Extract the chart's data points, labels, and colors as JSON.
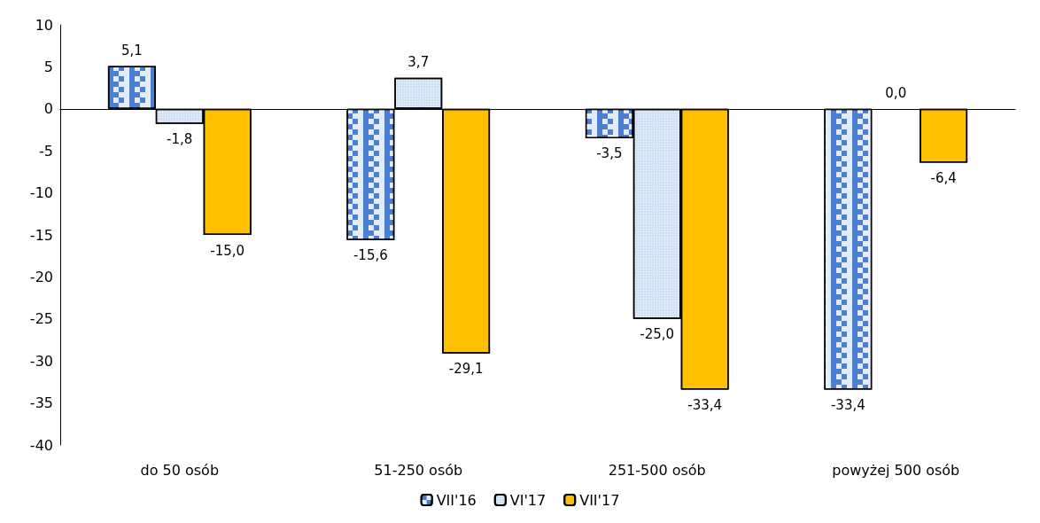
{
  "chart_data": {
    "type": "bar",
    "categories": [
      "do 50 osób",
      "51-250 osób",
      "251-500 osób",
      "powyżej 500 osób"
    ],
    "series": [
      {
        "name": "VII'16",
        "color": "#4a7fd4",
        "values": [
          5.1,
          -15.6,
          -3.5,
          -33.4
        ],
        "value_labels": [
          "5,1",
          "-15,6",
          "-3,5",
          "-33,4"
        ]
      },
      {
        "name": "VI'17",
        "color": "#cfe0f5",
        "values": [
          -1.8,
          3.7,
          -25.0,
          0.0
        ],
        "value_labels": [
          "-1,8",
          "3,7",
          "-25,0",
          "0,0"
        ]
      },
      {
        "name": "VII'17",
        "color": "#ffc000",
        "values": [
          -15.0,
          -29.1,
          -33.4,
          -6.4
        ],
        "value_labels": [
          "-15,0",
          "-29,1",
          "-33,4",
          "-6,4"
        ]
      }
    ],
    "ylim": [
      -40,
      10
    ],
    "yticks": [
      -40,
      -35,
      -30,
      -25,
      -20,
      -15,
      -10,
      -5,
      0,
      5,
      10
    ],
    "legend": "bottom"
  }
}
